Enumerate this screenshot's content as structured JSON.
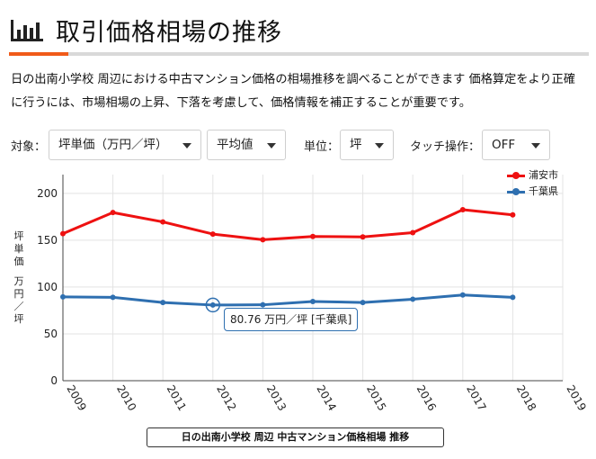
{
  "header": {
    "title": "取引価格相場の推移",
    "icon": "bar-chart-icon"
  },
  "description": "日の出南小学校 周辺における中古マンション価格の相場推移を調べることができます 価格算定をより正確に行うには、市場相場の上昇、下落を考慮して、価格情報を補正することが重要です。",
  "controls": {
    "target_label": "対象：",
    "target_value": "坪単価（万円／坪）",
    "stat_value": "平均値",
    "unit_label": "単位：",
    "unit_value": "坪",
    "touch_label": "タッチ操作：",
    "touch_value": "OFF"
  },
  "colors": {
    "accent": "#f05a1a",
    "series_urayasu": "#ee1111",
    "series_chiba": "#2e6fb0"
  },
  "tooltip": {
    "text": "80.76 万円／坪 [千葉県]"
  },
  "caption": "日の出南小学校 周辺 中古マンション価格相場 推移",
  "chart_data": {
    "type": "line",
    "ylabel": "坪単価",
    "yunit": "万円／坪",
    "x": [
      "2009",
      "2010",
      "2011",
      "2012",
      "2013",
      "2014",
      "2015",
      "2016",
      "2017",
      "2018",
      "2019"
    ],
    "xlim": [
      2009,
      2019
    ],
    "ylim": [
      0,
      220
    ],
    "yticks": [
      "0",
      "50",
      "100",
      "150",
      "200"
    ],
    "grid": true,
    "legend_position": "top-right",
    "series": [
      {
        "name": "浦安市",
        "color": "#ee1111",
        "x": [
          2009,
          2010,
          2011,
          2012,
          2013,
          2014,
          2015,
          2016,
          2017,
          2018
        ],
        "values": [
          157,
          179.5,
          169.5,
          156.5,
          150.5,
          154,
          153.5,
          158,
          182.5,
          177
        ]
      },
      {
        "name": "千葉県",
        "color": "#2e6fb0",
        "x": [
          2009,
          2010,
          2011,
          2012,
          2013,
          2014,
          2015,
          2016,
          2017,
          2018
        ],
        "values": [
          89.5,
          89,
          83.5,
          80.76,
          81,
          84.5,
          83.5,
          87,
          91.5,
          89
        ]
      }
    ],
    "highlight": {
      "series": "千葉県",
      "x": 2012,
      "value": 80.76
    }
  }
}
